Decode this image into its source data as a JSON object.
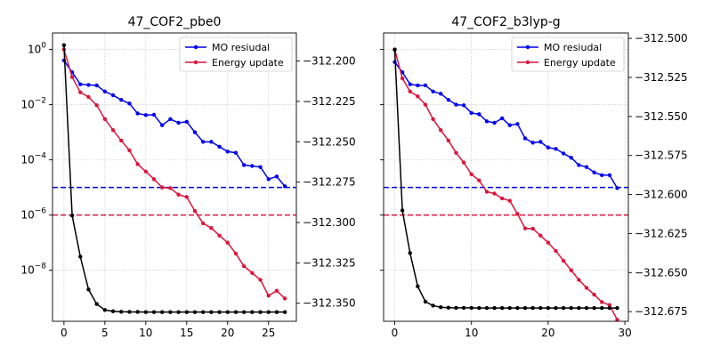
{
  "chart_data": [
    {
      "type": "line",
      "title": "47_COF2_pbe0",
      "xlabel": "",
      "ylabel": "",
      "y_scale": "log",
      "xlim": [
        -1.4,
        28.4
      ],
      "ylim_log10": [
        -9.85,
        0.6
      ],
      "y2lim": [
        -312.3612,
        -312.1826
      ],
      "x_ticks": [
        "0",
        "5",
        "10",
        "15",
        "20",
        "25"
      ],
      "y_ticks": [
        "10^0",
        "10^-2",
        "10^-4",
        "10^-6",
        "10^-8"
      ],
      "y2_ticks": [
        "-312.200",
        "-312.225",
        "-312.250",
        "-312.275",
        "-312.300",
        "-312.325",
        "-312.350"
      ],
      "grid": true,
      "legend_position": "top-right",
      "series": [
        {
          "name": "MO resiudal",
          "color": "#0000ee",
          "axis": "left",
          "x": [
            0,
            1,
            2,
            3,
            4,
            5,
            6,
            7,
            8,
            9,
            10,
            11,
            12,
            13,
            14,
            15,
            16,
            17,
            18,
            19,
            20,
            21,
            22,
            23,
            24,
            25,
            26,
            27
          ],
          "y": [
            0.4,
            0.15,
            0.055,
            0.052,
            0.05,
            0.03,
            0.022,
            0.015,
            0.011,
            0.0048,
            0.0042,
            0.0043,
            0.0018,
            0.003,
            0.0022,
            0.0024,
            0.001,
            0.00045,
            0.00045,
            0.0003,
            0.0002,
            0.00018,
            6.5e-05,
            6e-05,
            5.5e-05,
            2e-05,
            2.5e-05,
            1.1e-05
          ]
        },
        {
          "name": "Energy update",
          "color": "#dc143c",
          "axis": "left",
          "x": [
            0,
            1,
            2,
            3,
            4,
            5,
            6,
            7,
            8,
            9,
            10,
            11,
            12,
            13,
            14,
            15,
            16,
            17,
            18,
            19,
            20,
            21,
            22,
            23,
            24,
            25,
            26,
            27
          ],
          "y": [
            1.0,
            0.1,
            0.028,
            0.019,
            0.0095,
            0.003,
            0.0012,
            0.0005,
            0.00022,
            7e-05,
            3.8e-05,
            2e-05,
            1e-05,
            9.5e-06,
            5.5e-06,
            4.5e-06,
            1.4e-06,
            5e-07,
            3.4e-07,
            1.8e-07,
            1e-07,
            4e-08,
            1.4e-08,
            8e-09,
            4.5e-09,
            1.2e-09,
            1.8e-09,
            9.5e-10
          ]
        },
        {
          "name": "",
          "color": "#000000",
          "axis": "right",
          "x": [
            0,
            1,
            2,
            3,
            4,
            5,
            6,
            7,
            8,
            9,
            10,
            11,
            12,
            13,
            14,
            15,
            16,
            17,
            18,
            19,
            20,
            21,
            22,
            23,
            24,
            25,
            26,
            27
          ],
          "y": [
            -312.1902,
            -312.2957,
            -312.3212,
            -312.3415,
            -312.3505,
            -312.3542,
            -312.355,
            -312.3553,
            -312.3554,
            -312.3554,
            -312.3555,
            -312.3555,
            -312.3555,
            -312.3555,
            -312.3555,
            -312.3555,
            -312.3555,
            -312.3555,
            -312.3555,
            -312.3555,
            -312.3555,
            -312.3555,
            -312.3555,
            -312.3555,
            -312.3555,
            -312.3555,
            -312.3555,
            -312.3555
          ]
        }
      ],
      "thresholds": [
        {
          "y": 1e-05,
          "color": "#0000ee",
          "style": "dashed"
        },
        {
          "y": 1e-06,
          "color": "#dc143c",
          "style": "dashed"
        }
      ]
    },
    {
      "type": "line",
      "title": "47_COF2_b3lyp-g",
      "xlabel": "",
      "ylabel": "",
      "y_scale": "log",
      "xlim": [
        -1.45,
        30.45
      ],
      "ylim_log10": [
        -9.85,
        0.6
      ],
      "y2lim": [
        -312.6812,
        -312.4965
      ],
      "x_ticks": [
        "0",
        "10",
        "20",
        "30"
      ],
      "y_ticks": [],
      "y2_ticks": [
        "-312.500",
        "-312.525",
        "-312.550",
        "-312.575",
        "-312.600",
        "-312.625",
        "-312.650",
        "-312.675"
      ],
      "grid": true,
      "legend_position": "top-right",
      "series": [
        {
          "name": "MO resiudal",
          "color": "#0000ee",
          "axis": "left",
          "x": [
            0,
            1,
            2,
            3,
            4,
            5,
            6,
            7,
            8,
            9,
            10,
            11,
            12,
            13,
            14,
            15,
            16,
            17,
            18,
            19,
            20,
            21,
            22,
            23,
            24,
            25,
            26,
            27,
            28,
            29
          ],
          "y": [
            0.35,
            0.15,
            0.055,
            0.05,
            0.05,
            0.03,
            0.025,
            0.015,
            0.01,
            0.0095,
            0.005,
            0.0045,
            0.0025,
            0.0022,
            0.0032,
            0.0018,
            0.002,
            0.0006,
            0.00042,
            0.00045,
            0.00028,
            0.00025,
            0.00017,
            0.00012,
            6.5e-05,
            5.5e-05,
            3.5e-05,
            2.8e-05,
            2.8e-05,
            9.5e-06
          ]
        },
        {
          "name": "Energy update",
          "color": "#dc143c",
          "axis": "left",
          "x": [
            0,
            1,
            2,
            3,
            4,
            5,
            6,
            7,
            8,
            9,
            10,
            11,
            12,
            13,
            14,
            15,
            16,
            17,
            18,
            19,
            20,
            21,
            22,
            23,
            24,
            25,
            26,
            27,
            28,
            29
          ],
          "y": [
            1.0,
            0.09,
            0.03,
            0.02,
            0.01,
            0.003,
            0.0012,
            0.0005,
            0.00018,
            8e-05,
            3e-05,
            1.8e-05,
            7e-06,
            6e-06,
            4e-06,
            3.3e-06,
            1.1e-06,
            3.3e-07,
            3.2e-07,
            1.8e-07,
            1e-07,
            5e-08,
            2.2e-08,
            1e-08,
            4.5e-09,
            2.3e-09,
            1.3e-09,
            7e-10,
            5.5e-10,
            1.6e-10
          ]
        },
        {
          "name": "",
          "color": "#000000",
          "axis": "right",
          "x": [
            0,
            1,
            2,
            3,
            4,
            5,
            6,
            7,
            8,
            9,
            10,
            11,
            12,
            13,
            14,
            15,
            16,
            17,
            18,
            19,
            20,
            21,
            22,
            23,
            24,
            25,
            26,
            27,
            28,
            29
          ],
          "y": [
            -312.5072,
            -312.6102,
            -312.6375,
            -312.6588,
            -312.6686,
            -312.6712,
            -312.6722,
            -312.6725,
            -312.6726,
            -312.6726,
            -312.6726,
            -312.6727,
            -312.6727,
            -312.6727,
            -312.6727,
            -312.6727,
            -312.6727,
            -312.6727,
            -312.6727,
            -312.6727,
            -312.6727,
            -312.6727,
            -312.6727,
            -312.6727,
            -312.6727,
            -312.6727,
            -312.6727,
            -312.6727,
            -312.6727,
            -312.6727
          ]
        }
      ],
      "thresholds": [
        {
          "y": 1e-05,
          "color": "#0000ee",
          "style": "dashed"
        },
        {
          "y": 1e-06,
          "color": "#dc143c",
          "style": "dashed"
        }
      ]
    }
  ]
}
